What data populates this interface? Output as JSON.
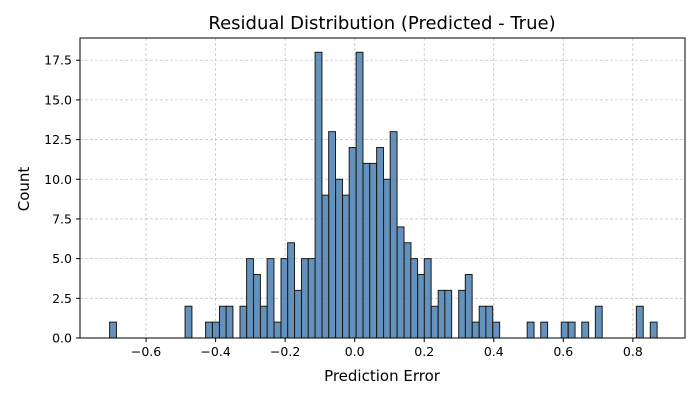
{
  "chart_data": {
    "type": "bar",
    "title": "Residual Distribution (Predicted - True)",
    "xlabel": "Prediction Error",
    "ylabel": "Count",
    "xlim": [
      -0.79,
      0.95
    ],
    "ylim": [
      0,
      18.9
    ],
    "grid": true,
    "bin_width": 0.0197,
    "xticks": [
      -0.6,
      -0.4,
      -0.2,
      0.0,
      0.2,
      0.4,
      0.6,
      0.8
    ],
    "xtick_labels": [
      "−0.6",
      "−0.4",
      "−0.2",
      "0.0",
      "0.2",
      "0.4",
      "0.6",
      "0.8"
    ],
    "yticks": [
      0.0,
      2.5,
      5.0,
      7.5,
      10.0,
      12.5,
      15.0,
      17.5
    ],
    "ytick_labels": [
      "0.0",
      "2.5",
      "5.0",
      "7.5",
      "10.0",
      "12.5",
      "15.0",
      "17.5"
    ],
    "bins": [
      {
        "x": -0.695,
        "count": 1
      },
      {
        "x": -0.478,
        "count": 2
      },
      {
        "x": -0.419,
        "count": 1
      },
      {
        "x": -0.399,
        "count": 1
      },
      {
        "x": -0.379,
        "count": 2
      },
      {
        "x": -0.36,
        "count": 2
      },
      {
        "x": -0.32,
        "count": 2
      },
      {
        "x": -0.301,
        "count": 5
      },
      {
        "x": -0.281,
        "count": 4
      },
      {
        "x": -0.261,
        "count": 2
      },
      {
        "x": -0.242,
        "count": 5
      },
      {
        "x": -0.222,
        "count": 1
      },
      {
        "x": -0.202,
        "count": 5
      },
      {
        "x": -0.183,
        "count": 6
      },
      {
        "x": -0.163,
        "count": 3
      },
      {
        "x": -0.143,
        "count": 5
      },
      {
        "x": -0.124,
        "count": 5
      },
      {
        "x": -0.104,
        "count": 18
      },
      {
        "x": -0.084,
        "count": 9
      },
      {
        "x": -0.065,
        "count": 13
      },
      {
        "x": -0.045,
        "count": 10
      },
      {
        "x": -0.025,
        "count": 9
      },
      {
        "x": -0.006,
        "count": 12
      },
      {
        "x": 0.014,
        "count": 18
      },
      {
        "x": 0.034,
        "count": 11
      },
      {
        "x": 0.053,
        "count": 11
      },
      {
        "x": 0.073,
        "count": 12
      },
      {
        "x": 0.093,
        "count": 10
      },
      {
        "x": 0.112,
        "count": 13
      },
      {
        "x": 0.132,
        "count": 7
      },
      {
        "x": 0.152,
        "count": 6
      },
      {
        "x": 0.171,
        "count": 5
      },
      {
        "x": 0.191,
        "count": 4
      },
      {
        "x": 0.21,
        "count": 5
      },
      {
        "x": 0.23,
        "count": 2
      },
      {
        "x": 0.25,
        "count": 3
      },
      {
        "x": 0.269,
        "count": 3
      },
      {
        "x": 0.309,
        "count": 3
      },
      {
        "x": 0.328,
        "count": 4
      },
      {
        "x": 0.348,
        "count": 1
      },
      {
        "x": 0.368,
        "count": 2
      },
      {
        "x": 0.387,
        "count": 2
      },
      {
        "x": 0.407,
        "count": 1
      },
      {
        "x": 0.506,
        "count": 1
      },
      {
        "x": 0.545,
        "count": 1
      },
      {
        "x": 0.604,
        "count": 1
      },
      {
        "x": 0.624,
        "count": 1
      },
      {
        "x": 0.663,
        "count": 1
      },
      {
        "x": 0.702,
        "count": 2
      },
      {
        "x": 0.82,
        "count": 2
      },
      {
        "x": 0.86,
        "count": 1
      }
    ]
  }
}
